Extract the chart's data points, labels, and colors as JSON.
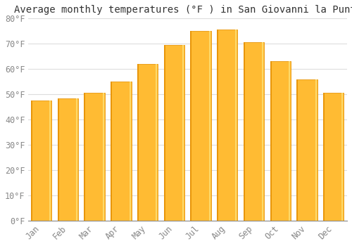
{
  "title": "Average monthly temperatures (°F ) in San Giovanni la Punta",
  "months": [
    "Jan",
    "Feb",
    "Mar",
    "Apr",
    "May",
    "Jun",
    "Jul",
    "Aug",
    "Sep",
    "Oct",
    "Nov",
    "Dec"
  ],
  "values": [
    47.5,
    48.5,
    50.5,
    55.0,
    62.0,
    69.5,
    75.0,
    75.5,
    70.5,
    63.0,
    56.0,
    50.5
  ],
  "bar_color_main": "#FFBB33",
  "bar_color_left": "#E8960A",
  "bar_color_right": "#FDD96A",
  "background_color": "#FFFFFF",
  "ylim": [
    0,
    80
  ],
  "ytick_step": 10,
  "grid_color": "#DDDDDD",
  "title_fontsize": 10,
  "tick_fontsize": 8.5,
  "font_family": "monospace"
}
